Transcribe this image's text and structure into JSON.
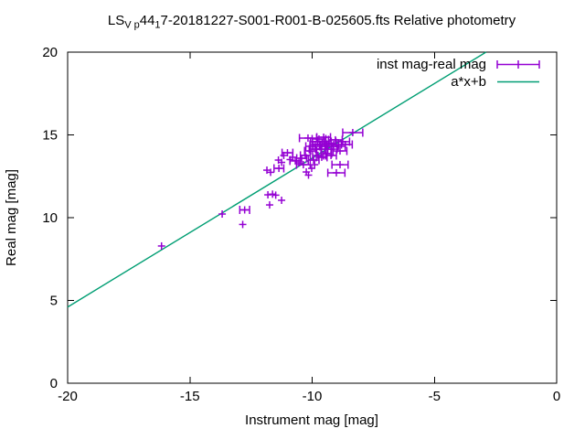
{
  "chart_data": {
    "type": "scatter",
    "title": "LS_V_p44_17-20181227-S001-R001-B-025605.fts Relative photometry",
    "title_parts": [
      {
        "text": "LS",
        "sub": false
      },
      {
        "text": "V p",
        "sub": true
      },
      {
        "text": "44",
        "sub": false
      },
      {
        "text": "1",
        "sub": true
      },
      {
        "text": "7-20181227-S001-R001-B-025605.fts Relative photometry",
        "sub": false
      }
    ],
    "xlabel": "Instrument mag [mag]",
    "ylabel": "Real mag [mag]",
    "xlim": [
      -20,
      0
    ],
    "ylim": [
      0,
      20
    ],
    "xticks": [
      -20,
      -15,
      -10,
      -5,
      0
    ],
    "yticks": [
      0,
      5,
      10,
      15,
      20
    ],
    "grid": false,
    "legend_position": "top-right",
    "background": "#ffffff",
    "axis_color": "#000000",
    "series": [
      {
        "name": "inst mag-real mag",
        "type": "xerrorbars",
        "color": "#9400D3",
        "marker": "plus",
        "points": [
          [
            -16.16,
            8.29,
            0.15
          ],
          [
            -13.68,
            10.22,
            0.1
          ],
          [
            -12.76,
            10.47,
            0.2
          ],
          [
            -12.84,
            9.59,
            0.1
          ],
          [
            -11.81,
            11.38,
            0.15
          ],
          [
            -11.62,
            11.42,
            0.18
          ],
          [
            -11.49,
            11.36,
            0.15
          ],
          [
            -11.25,
            11.05,
            0.12
          ],
          [
            -11.74,
            10.77,
            0.15
          ],
          [
            -11.85,
            12.87,
            0.18
          ],
          [
            -11.7,
            12.74,
            0.18
          ],
          [
            -11.36,
            12.98,
            0.2
          ],
          [
            -11.25,
            13.34,
            0.18
          ],
          [
            -11.38,
            13.48,
            0.18
          ],
          [
            -11.16,
            13.76,
            0.18
          ],
          [
            -11.01,
            13.92,
            0.22
          ],
          [
            -10.9,
            13.51,
            0.18
          ],
          [
            -10.8,
            13.65,
            0.18
          ],
          [
            -10.69,
            13.43,
            0.22
          ],
          [
            -10.54,
            13.31,
            0.18
          ],
          [
            -10.36,
            13.2,
            0.28
          ],
          [
            -10.24,
            12.76,
            0.18
          ],
          [
            -10.15,
            12.57,
            0.18
          ],
          [
            -10.17,
            14.81,
            0.35
          ],
          [
            -10.06,
            14.03,
            0.25
          ],
          [
            -9.98,
            14.31,
            0.28
          ],
          [
            -9.87,
            14.14,
            0.25
          ],
          [
            -9.79,
            14.59,
            0.28
          ],
          [
            -9.68,
            14.42,
            0.28
          ],
          [
            -9.61,
            14.14,
            0.25
          ],
          [
            -9.5,
            14.59,
            0.28
          ],
          [
            -9.42,
            14.31,
            0.28
          ],
          [
            -9.31,
            14.48,
            0.28
          ],
          [
            -9.23,
            14.14,
            0.25
          ],
          [
            -9.12,
            14.42,
            0.32
          ],
          [
            -9.05,
            14.7,
            0.28
          ],
          [
            -8.93,
            14.31,
            0.28
          ],
          [
            -8.86,
            14.03,
            0.28
          ],
          [
            -8.75,
            14.59,
            0.28
          ],
          [
            -8.64,
            14.42,
            0.28
          ],
          [
            -8.34,
            15.14,
            0.41
          ],
          [
            -8.86,
            13.2,
            0.33
          ],
          [
            -9.01,
            12.71,
            0.35
          ],
          [
            -9.94,
            13.48,
            0.22
          ],
          [
            -9.76,
            13.76,
            0.22
          ],
          [
            -9.61,
            13.65,
            0.22
          ],
          [
            -9.42,
            13.87,
            0.22
          ],
          [
            -9.23,
            13.76,
            0.22
          ],
          [
            -9.87,
            14.42,
            0.22
          ],
          [
            -10.28,
            13.76,
            0.2
          ],
          [
            -10.43,
            13.59,
            0.2
          ],
          [
            -9.72,
            14.75,
            0.28
          ],
          [
            -9.53,
            14.86,
            0.28
          ],
          [
            -10.02,
            12.98,
            0.15
          ],
          [
            -9.9,
            13.2,
            0.15
          ]
        ]
      },
      {
        "name": "a*x+b",
        "type": "line",
        "color": "#009E73",
        "fit": {
          "a": 0.9,
          "b": 22.6
        }
      }
    ]
  }
}
